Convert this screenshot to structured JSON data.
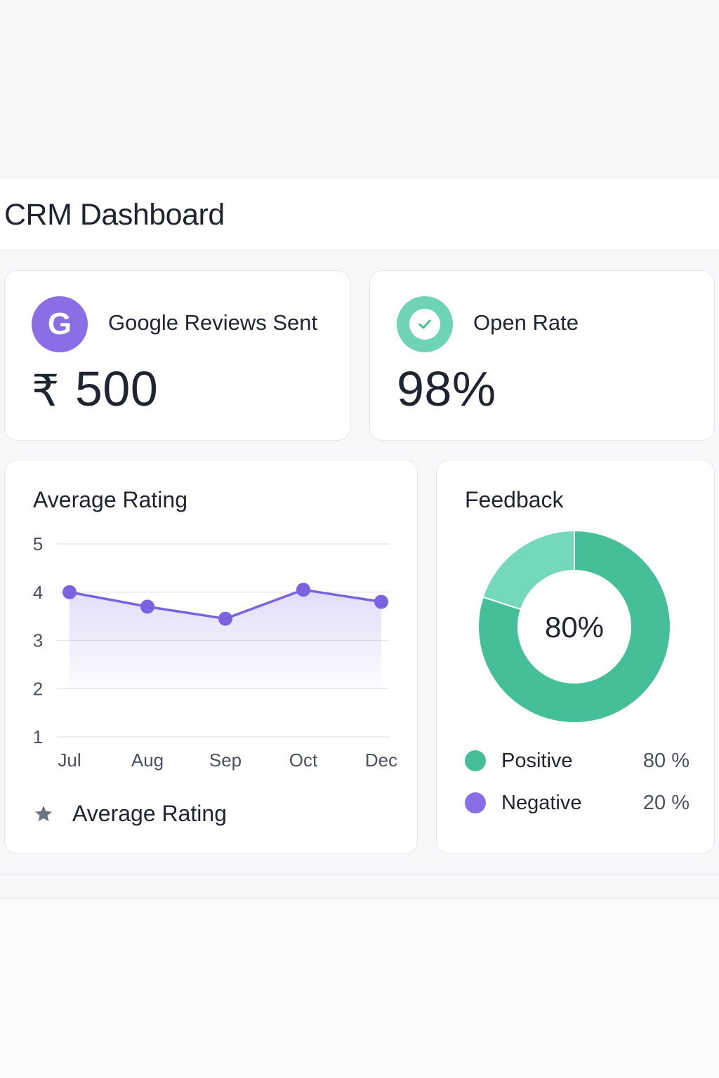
{
  "header": {
    "title": "CRM Dashboard"
  },
  "kpis": {
    "reviews": {
      "label": "Google Reviews Sent",
      "currency": "₹",
      "value": "500",
      "icon": "google-icon",
      "color": "#8a6ee6"
    },
    "open_rate": {
      "label": "Open Rate",
      "value": "98%",
      "icon": "check-icon",
      "color": "#6fd3b6"
    }
  },
  "rating_card": {
    "title": "Average Rating",
    "legend_label": "Average Rating",
    "legend_icon": "star-icon"
  },
  "feedback": {
    "title": "Feedback",
    "center_value": "80%",
    "items": [
      {
        "label": "Positive",
        "percent": "80 %",
        "color": "#45bf97"
      },
      {
        "label": "Negative",
        "percent": "20 %",
        "color": "#8a6ee6"
      }
    ]
  },
  "chart_data": [
    {
      "type": "area",
      "title": "Average Rating",
      "categories": [
        "Jul",
        "Aug",
        "Sep",
        "Oct",
        "Dec"
      ],
      "series": [
        {
          "values": [
            4.0,
            3.7,
            3.45,
            4.05,
            3.8
          ]
        }
      ],
      "ylim": [
        1,
        5
      ],
      "yticks": [
        1,
        2,
        3,
        4,
        5
      ],
      "grid": true,
      "color": "#7b63e0"
    },
    {
      "type": "pie",
      "title": "Feedback",
      "labels": [
        "Positive",
        "Negative"
      ],
      "values": [
        80,
        20
      ],
      "donut": true,
      "colors": [
        "#45bf97",
        "#74d8bb"
      ]
    }
  ]
}
